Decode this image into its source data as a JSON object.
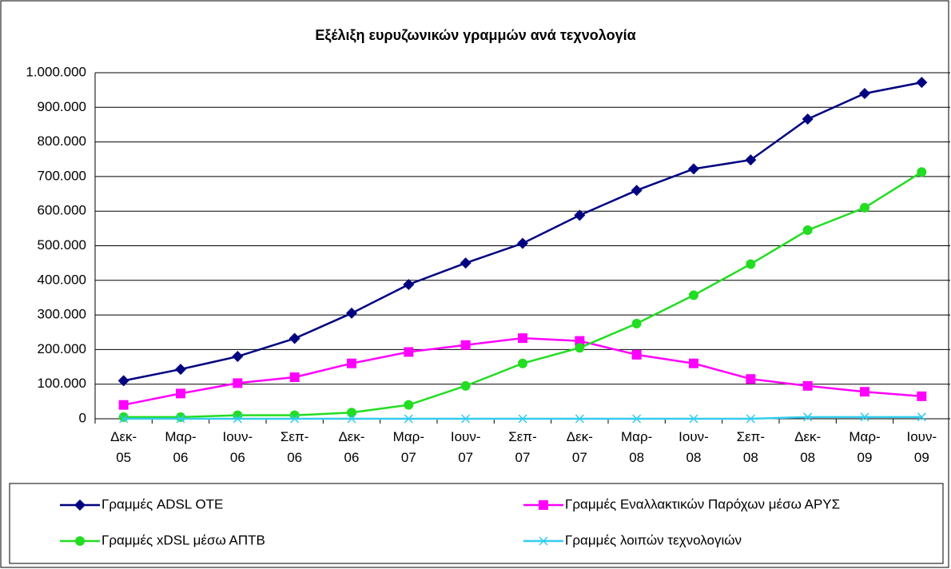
{
  "chart_data": {
    "type": "line",
    "title": "Εξέλιξη ευρυζωνικών γραμμών ανά τεχνολογία",
    "categories": [
      "Δεκ-05",
      "Μαρ-06",
      "Ιουν-06",
      "Σεπ-06",
      "Δεκ-06",
      "Μαρ-07",
      "Ιουν-07",
      "Σεπ-07",
      "Δεκ-07",
      "Μαρ-08",
      "Ιουν-08",
      "Σεπ-08",
      "Δεκ-08",
      "Μαρ-09",
      "Ιουν-09"
    ],
    "series": [
      {
        "name": "Γραμμές ADSL ΟΤΕ",
        "color": "#000080",
        "marker": "diamond",
        "values": [
          110000,
          143000,
          180000,
          232000,
          305000,
          388000,
          450000,
          507000,
          588000,
          660000,
          722000,
          748000,
          866000,
          940000,
          972000
        ]
      },
      {
        "name": "Γραμμές Εναλλακτικών Παρόχων μέσω ΑΡΥΣ",
        "color": "#ff00ff",
        "marker": "square",
        "values": [
          40000,
          73000,
          103000,
          120000,
          160000,
          193000,
          213000,
          233000,
          225000,
          185000,
          160000,
          115000,
          95000,
          78000,
          65000
        ]
      },
      {
        "name": "Γραμμές xDSL μέσω ΑΠΤΒ",
        "color": "#22dd22",
        "marker": "circle",
        "values": [
          5000,
          5000,
          10000,
          10000,
          18000,
          40000,
          95000,
          160000,
          205000,
          275000,
          357000,
          447000,
          545000,
          610000,
          713000
        ]
      },
      {
        "name": "Γραμμές λοιπών τεχνολογιών",
        "color": "#33ccee",
        "marker": "cross",
        "values": [
          0,
          0,
          0,
          0,
          0,
          0,
          0,
          0,
          0,
          0,
          0,
          0,
          5000,
          5000,
          5000
        ]
      }
    ],
    "ylim": [
      0,
      1000000
    ],
    "yticks": [
      0,
      {
        "value": 100000,
        "label": "100.000"
      },
      {
        "value": 200000,
        "label": "200.000"
      },
      {
        "value": 300000,
        "label": "300.000"
      },
      {
        "value": 400000,
        "label": "400.000"
      },
      {
        "value": 500000,
        "label": "500.000"
      },
      {
        "value": 600000,
        "label": "600.000"
      },
      {
        "value": 700000,
        "label": "700.000"
      },
      {
        "value": 800000,
        "label": "800.000"
      },
      {
        "value": 900000,
        "label": "900.000"
      },
      {
        "value": 1000000,
        "label": "1.000.000"
      }
    ],
    "grid": true
  }
}
